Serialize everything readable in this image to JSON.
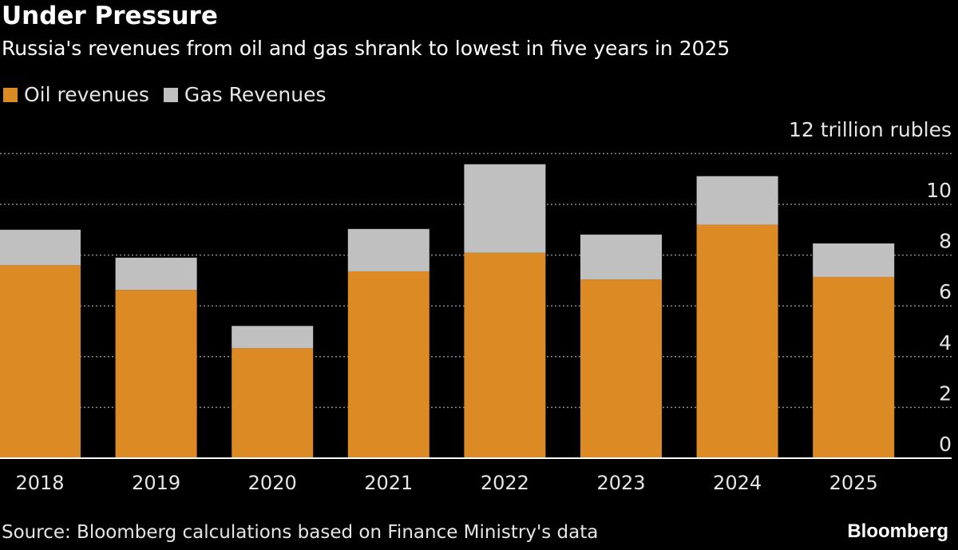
{
  "title": "Under Pressure",
  "subtitle": "Russia's revenues from oil and gas shrank to lowest in five years in 2025",
  "source": "Source: Bloomberg calculations based on Finance Ministry's data",
  "logo": "Bloomberg",
  "chart_data": {
    "type": "bar",
    "stacked": true,
    "categories": [
      "2018",
      "2019",
      "2020",
      "2021",
      "2022",
      "2023",
      "2024",
      "2025"
    ],
    "series": [
      {
        "name": "Oil revenues",
        "color": "#dc8a23",
        "values": [
          7.6,
          6.63,
          4.33,
          7.36,
          8.09,
          7.04,
          9.2,
          7.14
        ]
      },
      {
        "name": "Gas Revenues",
        "color": "#c0c0c0",
        "values": [
          1.4,
          1.27,
          0.88,
          1.67,
          3.49,
          1.77,
          1.91,
          1.32
        ]
      }
    ],
    "unit_label": "12 trillion rubles",
    "yticks": [
      "0",
      "2",
      "4",
      "6",
      "8",
      "10"
    ],
    "ylim": [
      0,
      12
    ],
    "grid": true,
    "legend": "top-left",
    "axis_position": "right"
  }
}
